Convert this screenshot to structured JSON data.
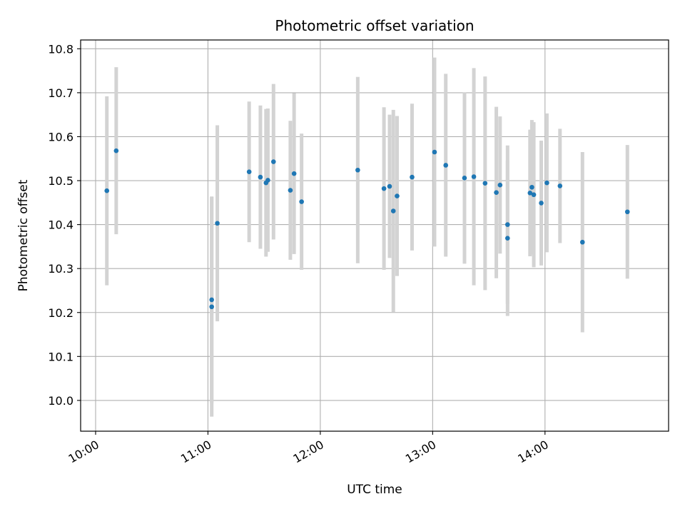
{
  "chart_data": {
    "type": "scatter",
    "title": "Photometric offset variation",
    "xlabel": "UTC time",
    "ylabel": "Photometric offset",
    "x_ticks": [
      "10:00",
      "11:00",
      "12:00",
      "13:00",
      "14:00"
    ],
    "y_ticks": [
      "10.0",
      "10.1",
      "10.2",
      "10.3",
      "10.4",
      "10.5",
      "10.6",
      "10.7",
      "10.8"
    ],
    "xlim": [
      "09:52",
      "15:06"
    ],
    "ylim": [
      9.93,
      10.82
    ],
    "grid": true,
    "colors": {
      "points": "#1f77b4",
      "errorbars": "#d3d3d3",
      "grid": "#b0b0b0"
    },
    "series": [
      {
        "points": [
          {
            "x": "10:06",
            "y": 10.477,
            "yerr": 0.215
          },
          {
            "x": "10:11",
            "y": 10.568,
            "yerr": 0.19
          },
          {
            "x": "11:02",
            "y": 10.229,
            "yerr": 0.235
          },
          {
            "x": "11:02",
            "y": 10.213,
            "yerr": 0.25
          },
          {
            "x": "11:05",
            "y": 10.403,
            "yerr": 0.223
          },
          {
            "x": "11:22",
            "y": 10.52,
            "yerr": 0.16
          },
          {
            "x": "11:28",
            "y": 10.508,
            "yerr": 0.163
          },
          {
            "x": "11:31",
            "y": 10.495,
            "yerr": 0.168
          },
          {
            "x": "11:32",
            "y": 10.501,
            "yerr": 0.163
          },
          {
            "x": "11:35",
            "y": 10.543,
            "yerr": 0.177
          },
          {
            "x": "11:44",
            "y": 10.478,
            "yerr": 0.158
          },
          {
            "x": "11:46",
            "y": 10.516,
            "yerr": 0.183
          },
          {
            "x": "11:50",
            "y": 10.452,
            "yerr": 0.155
          },
          {
            "x": "12:20",
            "y": 10.524,
            "yerr": 0.212
          },
          {
            "x": "12:34",
            "y": 10.482,
            "yerr": 0.185
          },
          {
            "x": "12:37",
            "y": 10.487,
            "yerr": 0.163
          },
          {
            "x": "12:39",
            "y": 10.431,
            "yerr": 0.23
          },
          {
            "x": "12:41",
            "y": 10.465,
            "yerr": 0.182
          },
          {
            "x": "12:49",
            "y": 10.508,
            "yerr": 0.167
          },
          {
            "x": "13:01",
            "y": 10.565,
            "yerr": 0.215
          },
          {
            "x": "13:07",
            "y": 10.535,
            "yerr": 0.208
          },
          {
            "x": "13:17",
            "y": 10.506,
            "yerr": 0.195
          },
          {
            "x": "13:22",
            "y": 10.509,
            "yerr": 0.247
          },
          {
            "x": "13:28",
            "y": 10.494,
            "yerr": 0.243
          },
          {
            "x": "13:34",
            "y": 10.473,
            "yerr": 0.195
          },
          {
            "x": "13:36",
            "y": 10.49,
            "yerr": 0.156
          },
          {
            "x": "13:40",
            "y": 10.4,
            "yerr": 0.18
          },
          {
            "x": "13:40",
            "y": 10.369,
            "yerr": 0.177
          },
          {
            "x": "13:52",
            "y": 10.472,
            "yerr": 0.144
          },
          {
            "x": "13:53",
            "y": 10.485,
            "yerr": 0.153
          },
          {
            "x": "13:54",
            "y": 10.468,
            "yerr": 0.165
          },
          {
            "x": "13:58",
            "y": 10.449,
            "yerr": 0.142
          },
          {
            "x": "14:01",
            "y": 10.495,
            "yerr": 0.158
          },
          {
            "x": "14:08",
            "y": 10.488,
            "yerr": 0.13
          },
          {
            "x": "14:20",
            "y": 10.36,
            "yerr": 0.205
          },
          {
            "x": "14:44",
            "y": 10.429,
            "yerr": 0.152
          }
        ]
      }
    ]
  }
}
